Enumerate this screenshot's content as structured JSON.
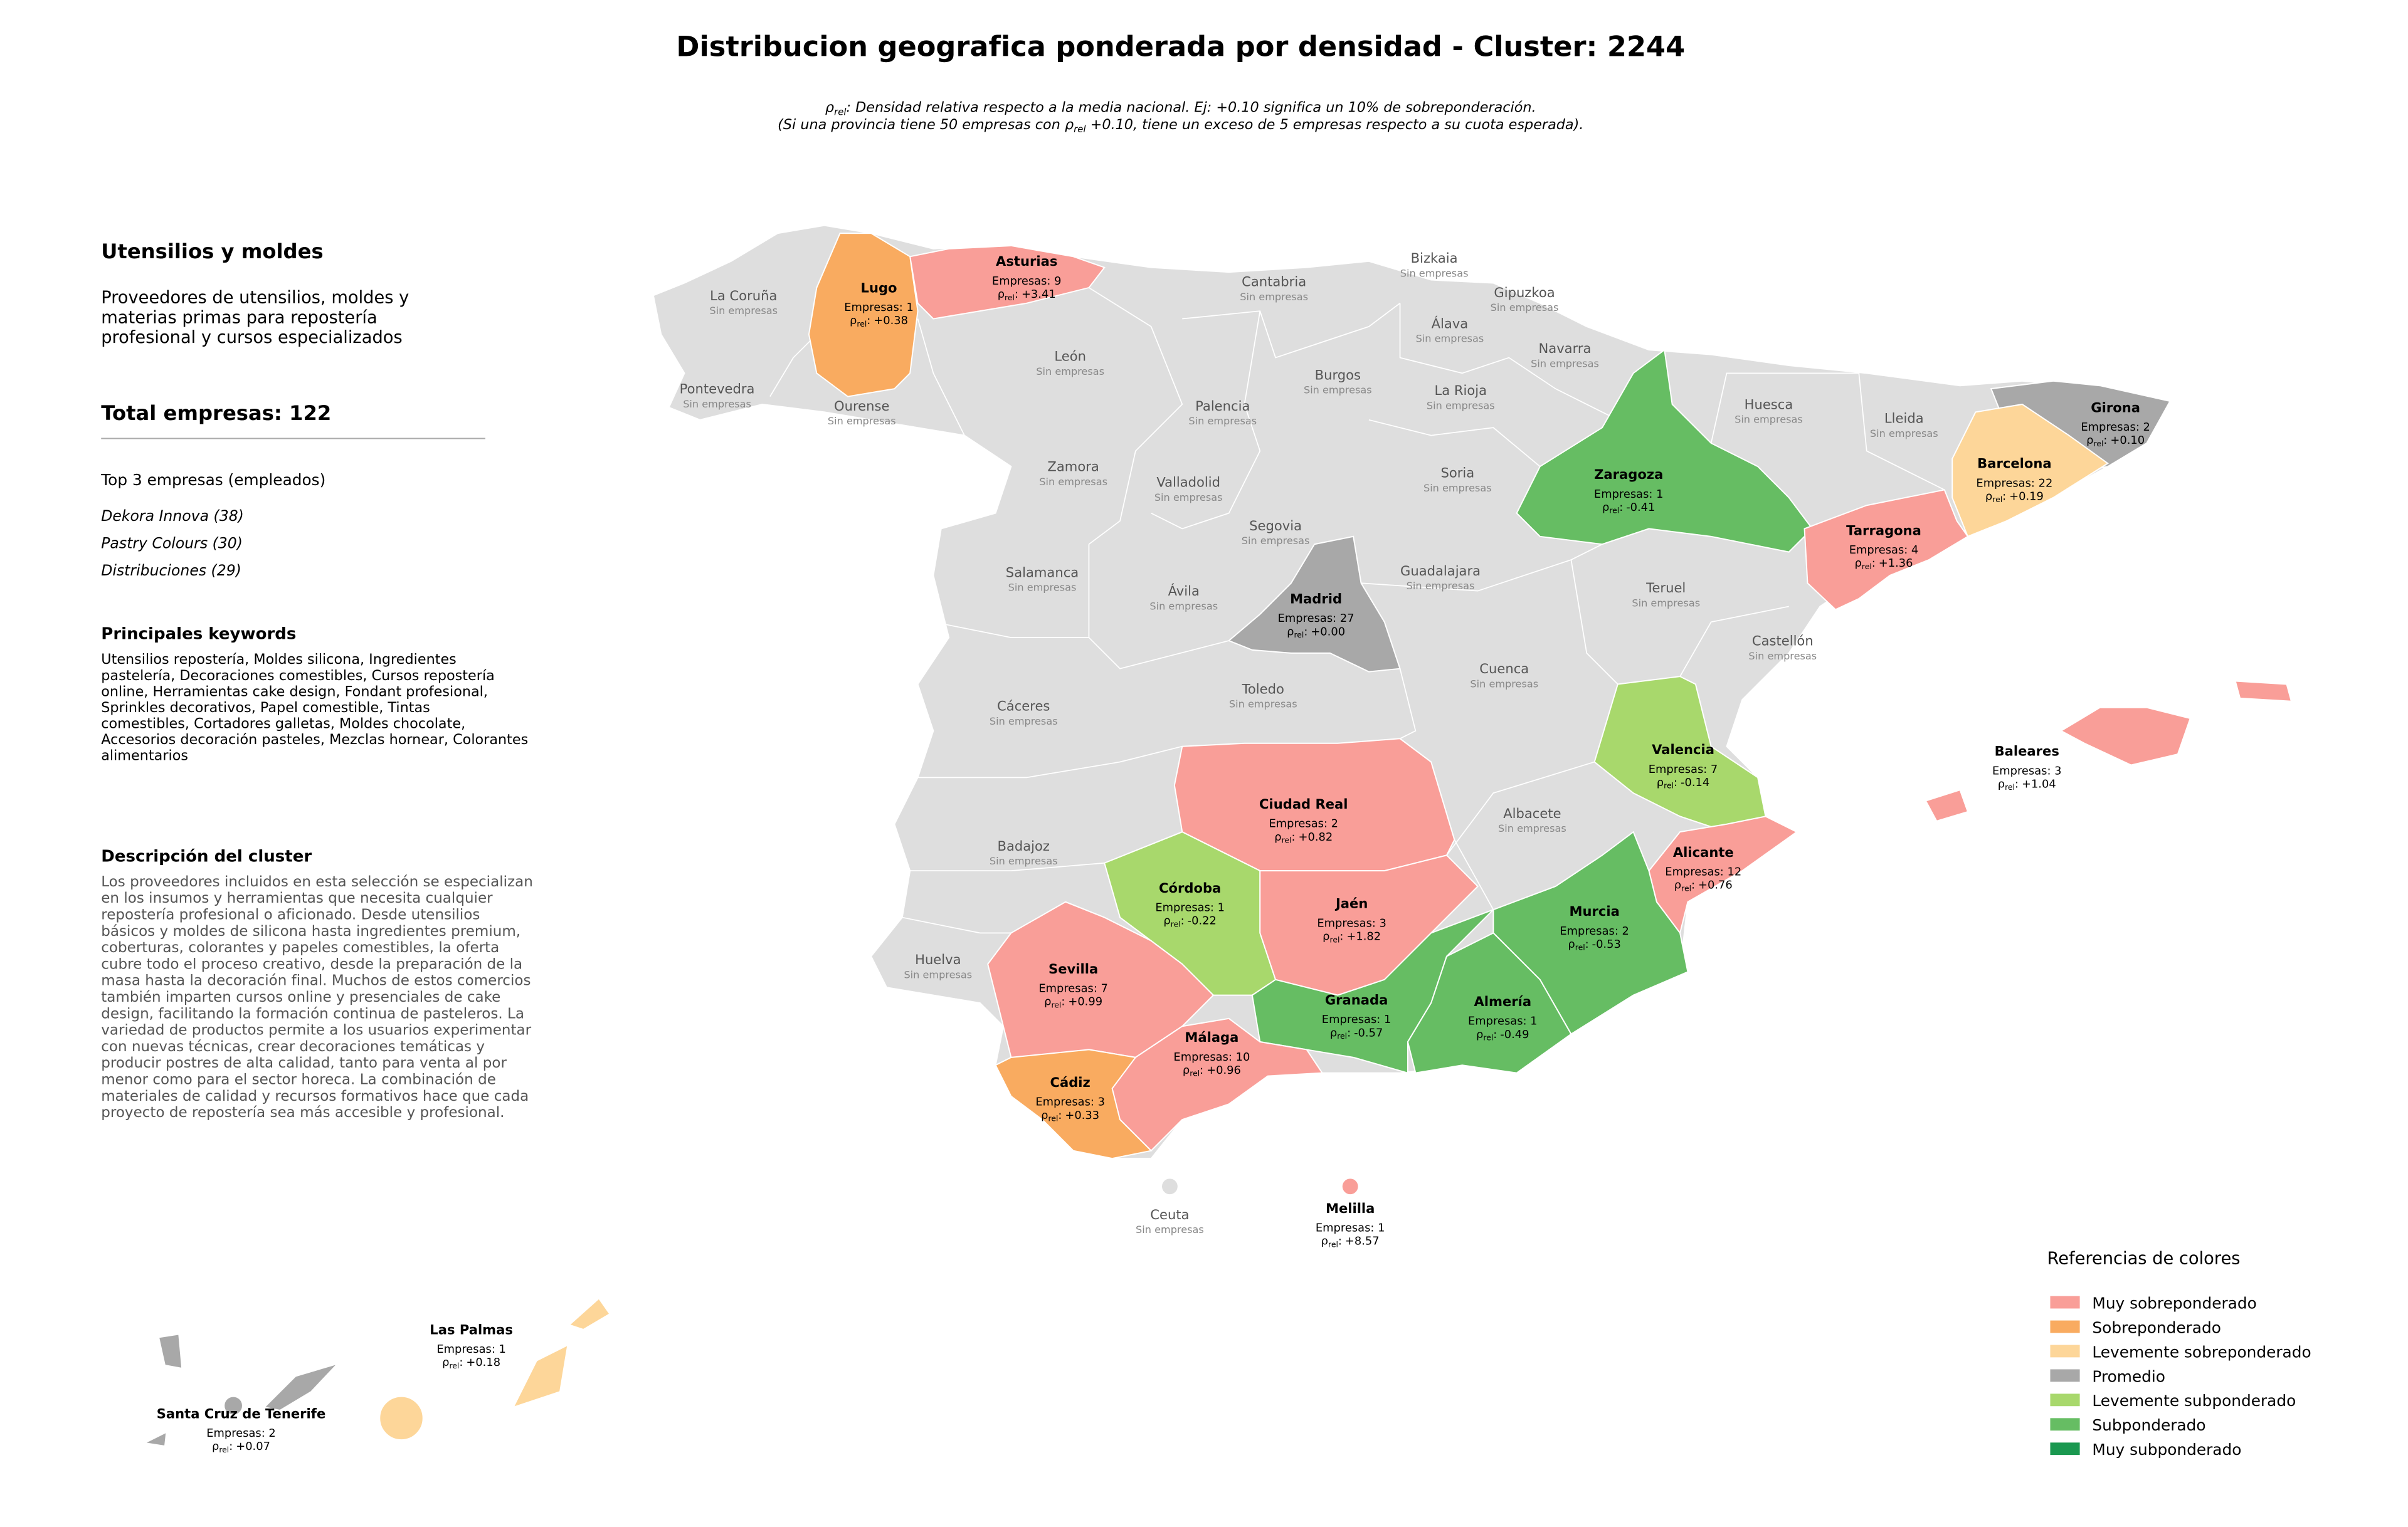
{
  "header": {
    "title": "Distribucion geografica ponderada por densidad - Cluster: 2244",
    "subtitle_line1": {
      "symbol": "ρ",
      "subscript": "rel",
      "text": ": Densidad relativa respecto a la media nacional. Ej: +0.10 significa un 10% de sobreponderación."
    },
    "subtitle_line2": {
      "before": "(Si una provincia tiene 50 empresas con ",
      "symbol": "ρ",
      "subscript": "rel",
      "after": " +0.10, tiene un exceso de 5 empresas respecto a su cuota esperada)."
    }
  },
  "sidebar": {
    "cluster_name": "Utensilios y moldes",
    "summary_lines": [
      "Proveedores de utensilios, moldes y",
      "materias primas para repostería",
      "profesional y cursos especializados"
    ],
    "total": "Total empresas: 122",
    "top_heading": "Top 3 empresas (empleados)",
    "top_companies": [
      "Dekora Innova (38)",
      "Pastry Colours (30)",
      "Distribuciones (29)"
    ],
    "keywords_heading": "Principales keywords",
    "keywords_lines": [
      "Utensilios repostería, Moldes silicona, Ingredientes",
      "pastelería, Decoraciones comestibles, Cursos repostería",
      "online, Herramientas cake design, Fondant profesional,",
      "Sprinkles decorativos, Papel comestible, Tintas",
      "comestibles, Cortadores galletas, Moldes chocolate,",
      "Accesorios decoración pasteles, Mezclas hornear, Colorantes",
      "alimentarios"
    ],
    "description_heading": "Descripción del cluster",
    "description_lines": [
      "Los proveedores incluidos en esta selección se especializan",
      "en los insumos y herramientas que necesita cualquier",
      "repostería profesional o aficionado. Desde utensilios",
      "básicos y moldes de silicona hasta ingredientes premium,",
      "coberturas, colorantes y papeles comestibles, la oferta",
      "cubre todo el proceso creativo, desde la preparación de la",
      "masa hasta la decoración final. Muchos de estos comercios",
      "también imparten cursos online y presenciales de cake",
      "design, facilitando la formación continua de pasteleros. La",
      "variedad de productos permite a los usuarios experimentar",
      "con nuevas técnicas, crear decoraciones temáticas y",
      "producir postres de alta calidad, tanto para venta al por",
      "menor como para el sector horeca. La combinación de",
      "materiales de calidad y recursos formativos hace que cada",
      "proyecto de repostería sea más accesible y profesional."
    ]
  },
  "map": {
    "density_symbol": "ρ",
    "density_subscript": "rel",
    "density_separator": ":",
    "provinces": [
      {
        "name": "Asturias",
        "companies": "Empresas: 9",
        "density": "+3.41",
        "color": "#f99e98"
      },
      {
        "name": "Lugo",
        "companies": "Empresas: 1",
        "density": "+0.38",
        "color": "#f9ab60"
      },
      {
        "name": "Girona",
        "companies": "Empresas: 2",
        "density": "+0.10",
        "color": "#a8a8a8"
      },
      {
        "name": "Barcelona",
        "companies": "Empresas: 22",
        "density": "+0.19",
        "color": "#fdd699"
      },
      {
        "name": "Zaragoza",
        "companies": "Empresas: 1",
        "density": "-0.41",
        "color": "#66bd63"
      },
      {
        "name": "Tarragona",
        "companies": "Empresas: 4",
        "density": "+1.36",
        "color": "#f99e98"
      },
      {
        "name": "Madrid",
        "companies": "Empresas: 27",
        "density": "+0.00",
        "color": "#a8a8a8"
      },
      {
        "name": "Valencia",
        "companies": "Empresas: 7",
        "density": "-0.14",
        "color": "#a8d86c"
      },
      {
        "name": "Ciudad Real",
        "companies": "Empresas: 2",
        "density": "+0.82",
        "color": "#f99e98"
      },
      {
        "name": "Alicante",
        "companies": "Empresas: 12",
        "density": "+0.76",
        "color": "#f99e98"
      },
      {
        "name": "Córdoba",
        "companies": "Empresas: 1",
        "density": "-0.22",
        "color": "#a8d86c"
      },
      {
        "name": "Jaén",
        "companies": "Empresas: 3",
        "density": "+1.82",
        "color": "#f99e98"
      },
      {
        "name": "Murcia",
        "companies": "Empresas: 2",
        "density": "-0.53",
        "color": "#66bd63"
      },
      {
        "name": "Sevilla",
        "companies": "Empresas: 7",
        "density": "+0.99",
        "color": "#f99e98"
      },
      {
        "name": "Granada",
        "companies": "Empresas: 1",
        "density": "-0.57",
        "color": "#66bd63"
      },
      {
        "name": "Almería",
        "companies": "Empresas: 1",
        "density": "-0.49",
        "color": "#66bd63"
      },
      {
        "name": "Málaga",
        "companies": "Empresas: 10",
        "density": "+0.96",
        "color": "#f99e98"
      },
      {
        "name": "Cádiz",
        "companies": "Empresas: 3",
        "density": "+0.33",
        "color": "#f9ab60"
      },
      {
        "name": "Baleares",
        "companies": "Empresas: 3",
        "density": "+1.04",
        "color": "#f99e98"
      },
      {
        "name": "Las Palmas",
        "companies": "Empresas: 1",
        "density": "+0.18",
        "color": "#fdd699"
      },
      {
        "name": "Santa Cruz de Tenerife",
        "companies": "Empresas: 2",
        "density": "+0.07",
        "color": "#a8a8a8"
      },
      {
        "name": "Melilla",
        "companies": "Empresas: 1",
        "density": "+8.57",
        "color": "#f99e98"
      }
    ],
    "empty_provinces": [
      {
        "name": "La Coruña",
        "status": "Sin empresas"
      },
      {
        "name": "Pontevedra",
        "status": "Sin empresas"
      },
      {
        "name": "Ourense",
        "status": "Sin empresas"
      },
      {
        "name": "León",
        "status": "Sin empresas"
      },
      {
        "name": "Cantabria",
        "status": "Sin empresas"
      },
      {
        "name": "Bizkaia",
        "status": "Sin empresas"
      },
      {
        "name": "Gipuzkoa",
        "status": "Sin empresas"
      },
      {
        "name": "Álava",
        "status": "Sin empresas"
      },
      {
        "name": "Navarra",
        "status": "Sin empresas"
      },
      {
        "name": "Burgos",
        "status": "Sin empresas"
      },
      {
        "name": "La Rioja",
        "status": "Sin empresas"
      },
      {
        "name": "Palencia",
        "status": "Sin empresas"
      },
      {
        "name": "Huesca",
        "status": "Sin empresas"
      },
      {
        "name": "Lleida",
        "status": "Sin empresas"
      },
      {
        "name": "Zamora",
        "status": "Sin empresas"
      },
      {
        "name": "Valladolid",
        "status": "Sin empresas"
      },
      {
        "name": "Soria",
        "status": "Sin empresas"
      },
      {
        "name": "Segovia",
        "status": "Sin empresas"
      },
      {
        "name": "Salamanca",
        "status": "Sin empresas"
      },
      {
        "name": "Ávila",
        "status": "Sin empresas"
      },
      {
        "name": "Guadalajara",
        "status": "Sin empresas"
      },
      {
        "name": "Teruel",
        "status": "Sin empresas"
      },
      {
        "name": "Castellón",
        "status": "Sin empresas"
      },
      {
        "name": "Cáceres",
        "status": "Sin empresas"
      },
      {
        "name": "Toledo",
        "status": "Sin empresas"
      },
      {
        "name": "Cuenca",
        "status": "Sin empresas"
      },
      {
        "name": "Albacete",
        "status": "Sin empresas"
      },
      {
        "name": "Badajoz",
        "status": "Sin empresas"
      },
      {
        "name": "Huelva",
        "status": "Sin empresas"
      },
      {
        "name": "Ceuta",
        "status": "Sin empresas"
      }
    ]
  },
  "legend": {
    "title": "Referencias de colores",
    "entries": [
      {
        "name": "Muy sobreponderado",
        "color": "#f99e98"
      },
      {
        "name": "Sobreponderado",
        "color": "#f9ab60"
      },
      {
        "name": "Levemente sobreponderado",
        "color": "#fdd699"
      },
      {
        "name": "Promedio",
        "color": "#a8a8a8"
      },
      {
        "name": "Levemente subponderado",
        "color": "#a8d86c"
      },
      {
        "name": "Subponderado",
        "color": "#66bd63"
      },
      {
        "name": "Muy subponderado",
        "color": "#1a9850"
      }
    ]
  }
}
